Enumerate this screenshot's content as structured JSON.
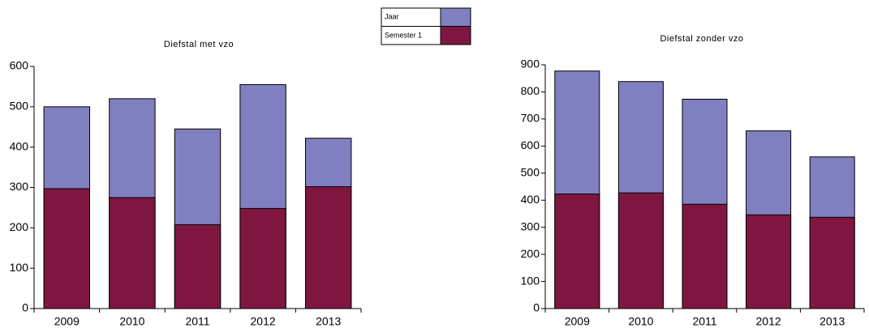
{
  "chart_data": [
    {
      "type": "bar",
      "title": "Diefstal met vzo",
      "categories": [
        "2009",
        "2010",
        "2011",
        "2012",
        "2013"
      ],
      "series": [
        {
          "name": "Jaar",
          "color": "#8080c0",
          "values": [
            500,
            520,
            445,
            555,
            422
          ]
        },
        {
          "name": "Semester 1",
          "color": "#7f1640",
          "values": [
            297,
            275,
            208,
            248,
            302
          ]
        }
      ],
      "ylim": [
        0,
        600
      ],
      "yticks": [
        0,
        100,
        200,
        300,
        400,
        500,
        600
      ]
    },
    {
      "type": "bar",
      "title": "Diefstal zonder vzo",
      "categories": [
        "2009",
        "2010",
        "2011",
        "2012",
        "2013"
      ],
      "series": [
        {
          "name": "Jaar",
          "color": "#8080c0",
          "values": [
            877,
            838,
            773,
            656,
            560
          ]
        },
        {
          "name": "Semester 1",
          "color": "#7f1640",
          "values": [
            423,
            427,
            385,
            346,
            337
          ]
        }
      ],
      "ylim": [
        0,
        900
      ],
      "yticks": [
        0,
        100,
        200,
        300,
        400,
        500,
        600,
        700,
        800,
        900
      ]
    }
  ]
}
